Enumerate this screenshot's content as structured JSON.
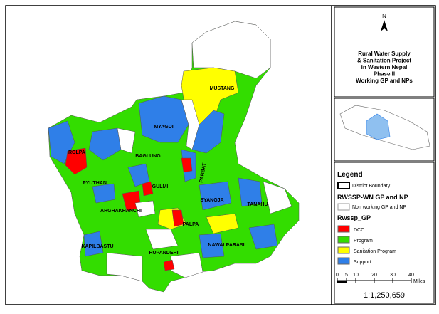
{
  "title": [
    "Rural Water Supply",
    "& Sanitation Project",
    "in Western Nepal",
    "Phase II",
    "Working GP and NPs"
  ],
  "north": "N",
  "map": {
    "labels": [
      "MUSTANG",
      "MYAGDI",
      "ROLPA",
      "BAGLUNG",
      "PARBAT",
      "PYUTHAN",
      "GULMI",
      "ARGHAKHANCHI",
      "SYANGJA",
      "TANAHU",
      "PALPA",
      "KAPILBASTU",
      "RUPANDEHI",
      "NAWALPARASI"
    ]
  },
  "legend": {
    "title": "Legend",
    "boundary": "District Boundary",
    "group1": "RWSSP-WN GP and NP",
    "nonworking": "Non working GP and NP",
    "group2": "Rwssp_GP",
    "items": [
      {
        "name": "DCC",
        "color": "#ff0000"
      },
      {
        "name": "Program",
        "color": "#33dd00"
      },
      {
        "name": "Sanitation Program",
        "color": "#ffff00"
      },
      {
        "name": "Support",
        "color": "#2f7fe8"
      }
    ]
  },
  "scale": {
    "ticks": [
      "0",
      "5",
      "10",
      "20",
      "30",
      "40"
    ],
    "unit": "Miles",
    "ratio": "1:1,250,659"
  }
}
